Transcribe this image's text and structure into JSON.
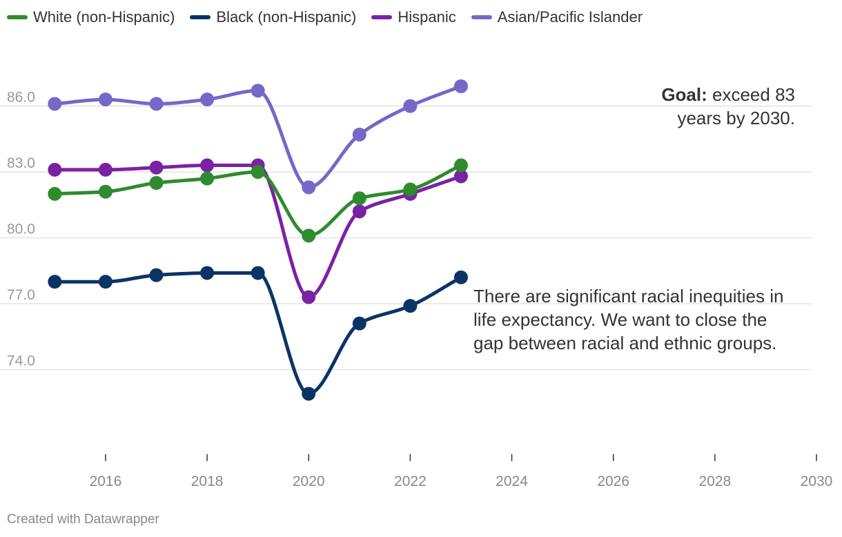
{
  "chart_data": {
    "type": "line",
    "title": "",
    "xlabel": "",
    "ylabel": "",
    "x": [
      2015,
      2016,
      2017,
      2018,
      2019,
      2020,
      2021,
      2022,
      2023
    ],
    "xlim": [
      2014.9,
      2030
    ],
    "ylim": [
      70.4,
      88
    ],
    "xticks": [
      2016,
      2018,
      2020,
      2022,
      2024,
      2026,
      2028,
      2030
    ],
    "yticks": [
      74.0,
      77.0,
      80.0,
      83.0,
      86.0
    ],
    "ytick_labels": [
      "74.0",
      "77.0",
      "80.0",
      "83.0",
      "86.0"
    ],
    "series": [
      {
        "name": "White (non-Hispanic)",
        "color": "#2e8b2e",
        "values": [
          82.0,
          82.1,
          82.5,
          82.7,
          83.0,
          80.1,
          81.8,
          82.2,
          83.3
        ]
      },
      {
        "name": "Black (non-Hispanic)",
        "color": "#0b3466",
        "values": [
          78.0,
          78.0,
          78.3,
          78.4,
          78.4,
          72.9,
          76.1,
          76.9,
          78.2
        ]
      },
      {
        "name": "Hispanic",
        "color": "#7b22a4",
        "values": [
          83.1,
          83.1,
          83.2,
          83.3,
          83.3,
          77.3,
          81.2,
          82.0,
          82.8
        ]
      },
      {
        "name": "Asian/Pacific Islander",
        "color": "#7468c8",
        "values": [
          86.1,
          86.3,
          86.1,
          86.3,
          86.7,
          82.3,
          84.7,
          86.0,
          86.9
        ]
      }
    ],
    "legend_position": "top-left",
    "grid": true
  },
  "annotations": {
    "goal_bold": "Goal:",
    "goal_text": " exceed 83 years by 2030.",
    "inequity_text": "There are significant racial inequities in life expectancy. We want to close the gap between racial and ethnic groups."
  },
  "footer": {
    "credit": "Created with Datawrapper"
  },
  "colors": {
    "grid": "#dddddd",
    "tick_text": "#999999",
    "axis_text": "#888888"
  }
}
